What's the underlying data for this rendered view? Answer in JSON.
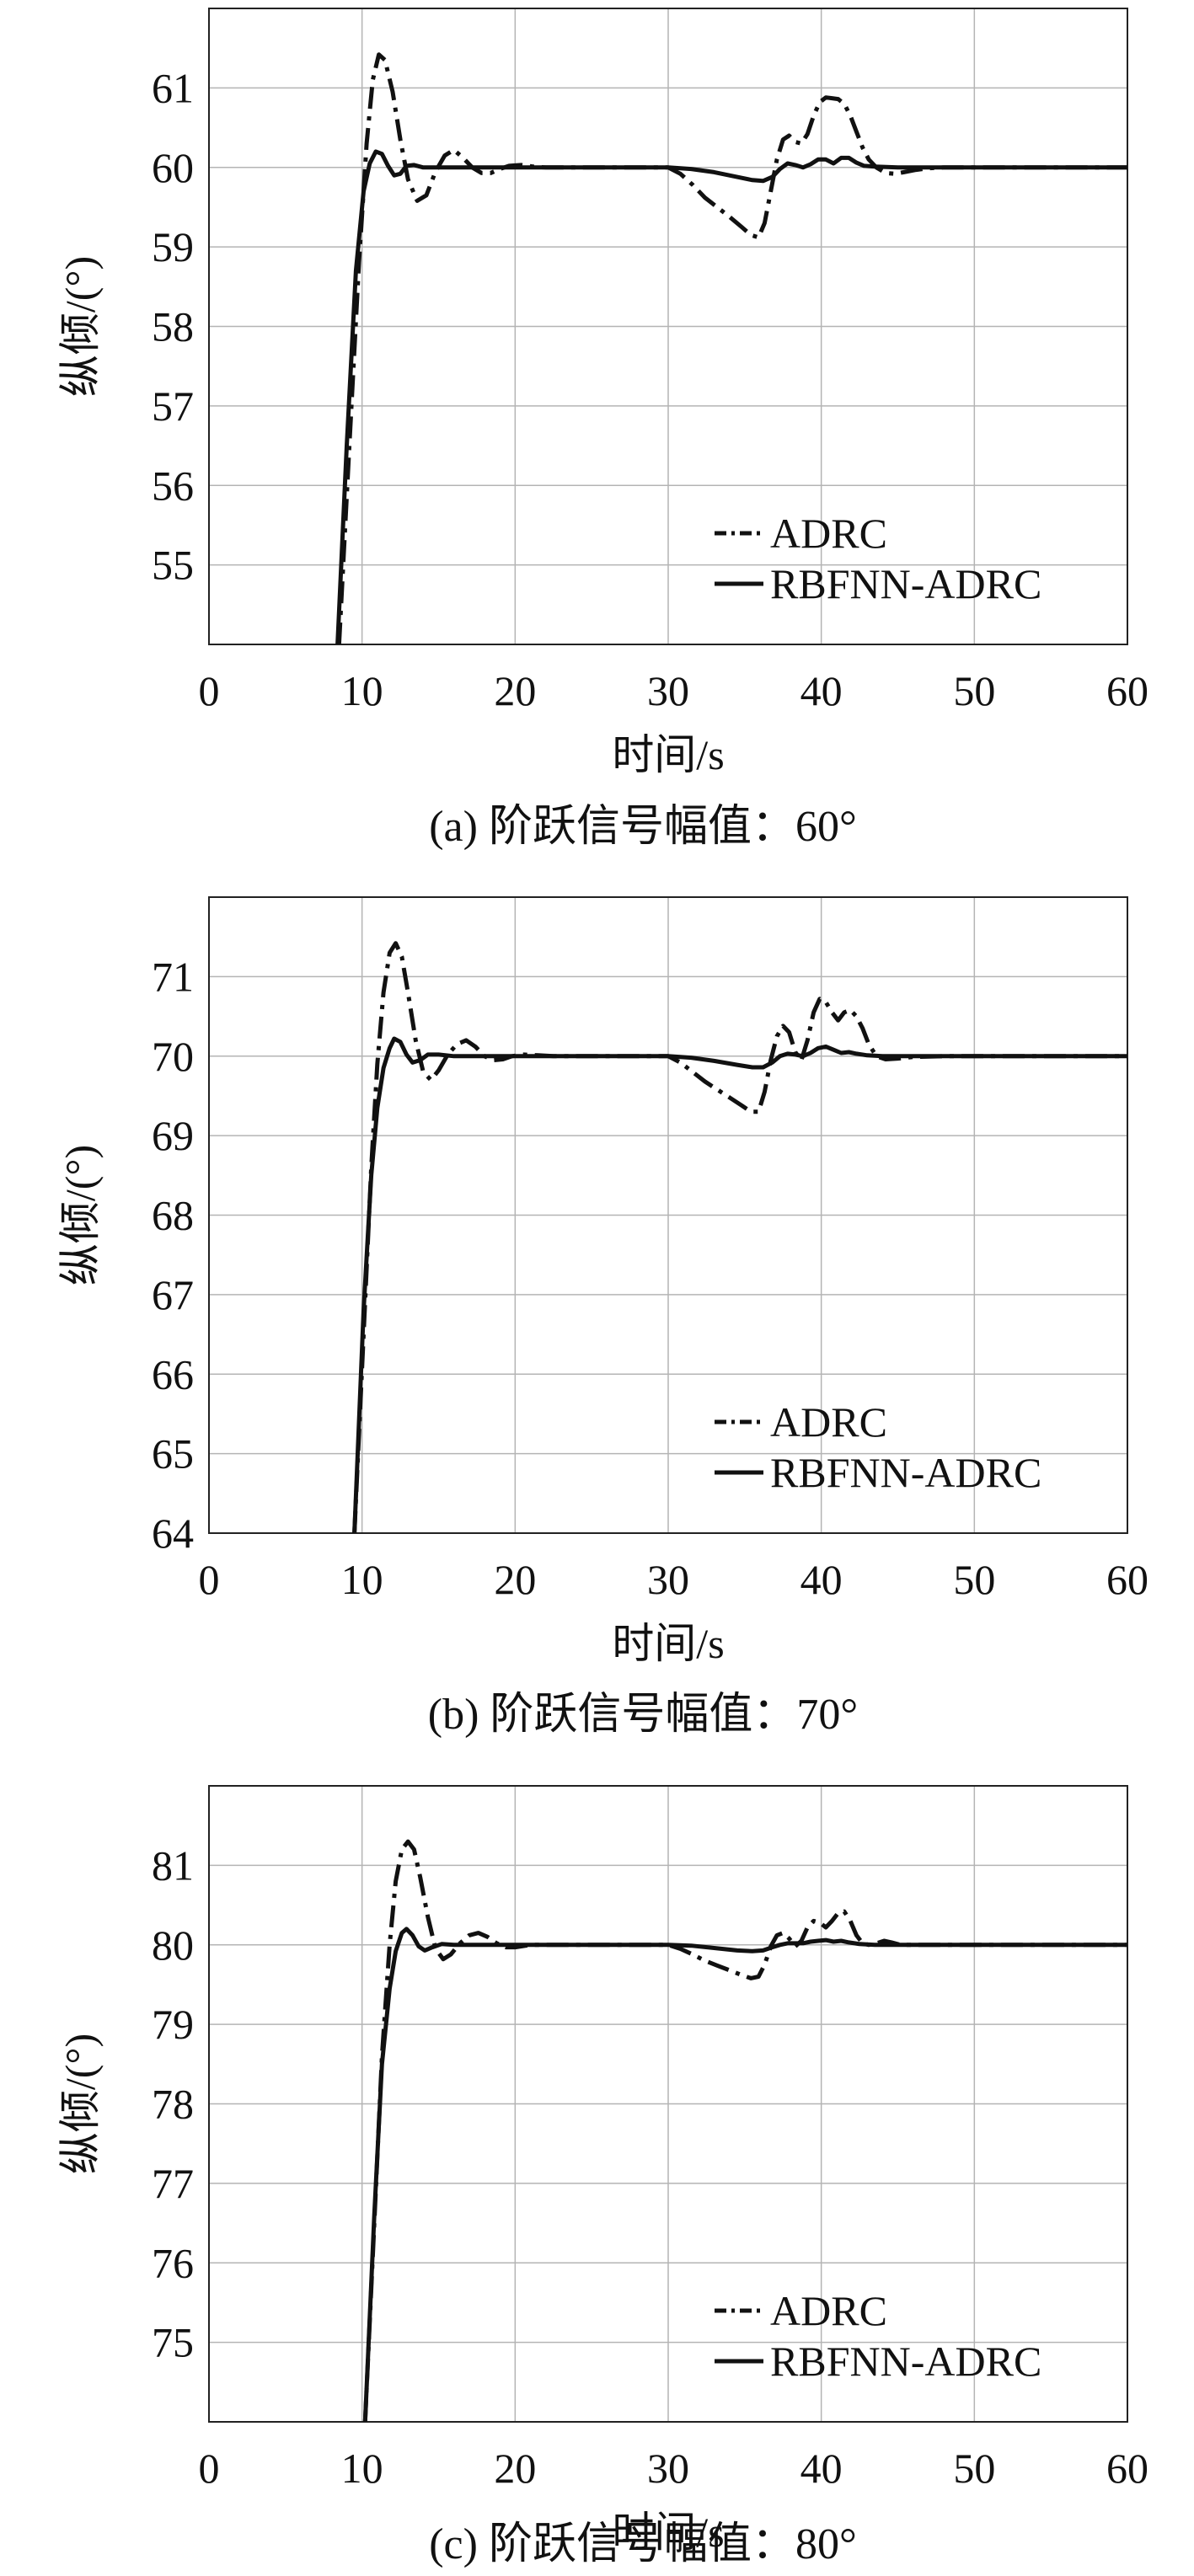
{
  "figure": {
    "background": "#ffffff",
    "line_color": "#111111",
    "grid_color": "#b4b4b4"
  },
  "chart_data": [
    {
      "type": "line",
      "caption": "(a) 阶跃信号幅值：60°",
      "xlabel": "时间/s",
      "ylabel": "纵倾/(°)",
      "xlim": [
        0,
        60
      ],
      "ylim": [
        54,
        62
      ],
      "xticks": [
        0,
        10,
        20,
        30,
        40,
        50,
        60
      ],
      "yticks": [
        55,
        56,
        57,
        58,
        59,
        60,
        61
      ],
      "grid": true,
      "legend_position": "lower-right",
      "series": [
        {
          "name": "ADRC",
          "style": "dashdot",
          "x": [
            8.5,
            9.2,
            9.8,
            10.3,
            10.7,
            11.1,
            11.5,
            12.0,
            12.5,
            13.0,
            13.6,
            14.2,
            14.8,
            15.4,
            16.0,
            16.6,
            17.2,
            17.8,
            18.4,
            19.0,
            19.6,
            20.4,
            21.2,
            22.0,
            25.0,
            30.0,
            30.8,
            31.6,
            32.4,
            33.2,
            34.0,
            34.8,
            35.4,
            35.9,
            36.3,
            36.7,
            37.1,
            37.5,
            37.9,
            38.3,
            38.7,
            39.1,
            39.5,
            39.9,
            40.3,
            40.7,
            41.1,
            41.5,
            41.9,
            42.3,
            42.7,
            43.1,
            43.6,
            44.2,
            44.8,
            45.4,
            46.2,
            47.0,
            48.0,
            50.0,
            60.0
          ],
          "y": [
            54.0,
            56.6,
            58.8,
            60.3,
            61.1,
            61.42,
            61.35,
            60.95,
            60.35,
            59.85,
            59.58,
            59.65,
            59.95,
            60.15,
            60.22,
            60.12,
            60.0,
            59.93,
            59.93,
            59.98,
            60.02,
            60.03,
            60.01,
            60.0,
            60.0,
            60.0,
            59.92,
            59.78,
            59.62,
            59.5,
            59.38,
            59.25,
            59.15,
            59.12,
            59.3,
            59.7,
            60.1,
            60.35,
            60.4,
            60.32,
            60.3,
            60.42,
            60.65,
            60.82,
            60.88,
            60.87,
            60.86,
            60.8,
            60.65,
            60.45,
            60.25,
            60.1,
            60.0,
            59.93,
            59.92,
            59.94,
            59.97,
            59.99,
            60.0,
            60.0,
            60.0
          ]
        },
        {
          "name": "RBFNN-ADRC",
          "style": "solid",
          "x": [
            8.4,
            9.0,
            9.6,
            10.1,
            10.5,
            10.9,
            11.3,
            11.7,
            12.1,
            12.5,
            12.9,
            13.4,
            14.0,
            15.0,
            16.0,
            20.0,
            30.0,
            31.5,
            33.0,
            34.5,
            35.5,
            36.2,
            36.8,
            37.3,
            37.8,
            38.3,
            38.8,
            39.3,
            39.8,
            40.3,
            40.8,
            41.3,
            41.8,
            42.3,
            42.8,
            43.5,
            45.0,
            50.0,
            60.0
          ],
          "y": [
            54.0,
            56.5,
            58.7,
            59.7,
            60.05,
            60.2,
            60.17,
            60.02,
            59.9,
            59.92,
            60.02,
            60.03,
            60.0,
            60.0,
            60.0,
            60.0,
            60.0,
            59.98,
            59.94,
            59.88,
            59.84,
            59.83,
            59.88,
            59.98,
            60.05,
            60.03,
            60.0,
            60.04,
            60.1,
            60.1,
            60.05,
            60.12,
            60.12,
            60.06,
            60.02,
            60.01,
            60.0,
            60.0,
            60.0
          ]
        }
      ]
    },
    {
      "type": "line",
      "caption": "(b) 阶跃信号幅值：70°",
      "xlabel": "时间/s",
      "ylabel": "纵倾/(°)",
      "xlim": [
        0,
        60
      ],
      "ylim": [
        64,
        72
      ],
      "xticks": [
        0,
        10,
        20,
        30,
        40,
        50,
        60
      ],
      "yticks": [
        64,
        65,
        66,
        67,
        68,
        69,
        70,
        71
      ],
      "grid": true,
      "legend_position": "lower-right",
      "series": [
        {
          "name": "ADRC",
          "style": "dashdot",
          "x": [
            9.5,
            10.1,
            10.6,
            11.0,
            11.4,
            11.8,
            12.2,
            12.6,
            13.0,
            13.5,
            14.0,
            14.5,
            15.0,
            15.6,
            16.2,
            16.8,
            17.4,
            18.0,
            18.6,
            19.2,
            19.8,
            20.5,
            21.5,
            22.5,
            25.0,
            30.0,
            30.8,
            31.6,
            32.4,
            33.2,
            34.0,
            34.8,
            35.4,
            35.9,
            36.3,
            36.7,
            37.1,
            37.5,
            37.9,
            38.3,
            38.7,
            39.1,
            39.5,
            39.9,
            40.3,
            40.7,
            41.1,
            41.5,
            41.9,
            42.3,
            42.7,
            43.1,
            43.6,
            44.2,
            45.0,
            46.0,
            48.0,
            50.0,
            60.0
          ],
          "y": [
            64.0,
            66.5,
            68.6,
            69.9,
            70.8,
            71.3,
            71.42,
            71.25,
            70.8,
            70.2,
            69.8,
            69.7,
            69.82,
            70.02,
            70.15,
            70.2,
            70.12,
            70.0,
            69.95,
            69.96,
            70.0,
            70.02,
            70.01,
            70.0,
            70.0,
            70.0,
            69.92,
            69.8,
            69.68,
            69.58,
            69.48,
            69.38,
            69.3,
            69.3,
            69.55,
            69.95,
            70.25,
            70.38,
            70.3,
            70.05,
            69.95,
            70.2,
            70.55,
            70.72,
            70.68,
            70.55,
            70.45,
            70.55,
            70.58,
            70.5,
            70.35,
            70.15,
            70.0,
            69.96,
            69.97,
            69.99,
            70.0,
            70.0,
            70.0
          ]
        },
        {
          "name": "RBFNN-ADRC",
          "style": "solid",
          "x": [
            9.5,
            10.1,
            10.6,
            11.0,
            11.4,
            11.8,
            12.1,
            12.5,
            12.9,
            13.3,
            13.8,
            14.3,
            15.0,
            16.0,
            20.0,
            30.0,
            31.5,
            33.0,
            34.5,
            35.5,
            36.2,
            36.8,
            37.3,
            37.8,
            38.3,
            38.8,
            39.3,
            39.8,
            40.3,
            40.8,
            41.3,
            41.8,
            42.3,
            43.0,
            44.0,
            46.0,
            50.0,
            60.0
          ],
          "y": [
            64.0,
            66.8,
            68.5,
            69.35,
            69.85,
            70.1,
            70.22,
            70.18,
            70.02,
            69.92,
            69.95,
            70.02,
            70.02,
            70.0,
            70.0,
            70.0,
            69.98,
            69.94,
            69.89,
            69.86,
            69.86,
            69.92,
            70.0,
            70.03,
            70.02,
            70.0,
            70.04,
            70.1,
            70.12,
            70.08,
            70.04,
            70.05,
            70.03,
            70.01,
            70.0,
            70.0,
            70.0,
            70.0
          ]
        }
      ]
    },
    {
      "type": "line",
      "caption": "(c) 阶跃信号幅值：80°",
      "xlabel": "时间/s",
      "ylabel": "纵倾/(°)",
      "xlim": [
        0,
        60
      ],
      "ylim": [
        74,
        82
      ],
      "xticks": [
        0,
        10,
        20,
        30,
        40,
        50,
        60
      ],
      "yticks": [
        75,
        76,
        77,
        78,
        79,
        80,
        81
      ],
      "grid": true,
      "legend_position": "lower-right",
      "series": [
        {
          "name": "ADRC",
          "style": "dashdot",
          "x": [
            10.2,
            10.8,
            11.3,
            11.8,
            12.2,
            12.6,
            13.0,
            13.4,
            13.8,
            14.3,
            14.8,
            15.3,
            15.8,
            16.4,
            17.0,
            17.6,
            18.2,
            18.8,
            19.4,
            20.0,
            21.0,
            22.0,
            25.0,
            30.0,
            30.8,
            31.6,
            32.4,
            33.2,
            34.0,
            34.8,
            35.4,
            35.9,
            36.3,
            36.7,
            37.1,
            37.5,
            37.9,
            38.3,
            38.7,
            39.1,
            39.5,
            39.9,
            40.3,
            40.7,
            41.1,
            41.5,
            41.9,
            42.3,
            42.7,
            43.1,
            43.6,
            44.1,
            44.6,
            45.2,
            46.0,
            48.0,
            50.0,
            60.0
          ],
          "y": [
            74.0,
            76.5,
            78.6,
            80.0,
            80.8,
            81.2,
            81.3,
            81.2,
            80.85,
            80.35,
            79.95,
            79.82,
            79.88,
            80.02,
            80.12,
            80.15,
            80.1,
            80.02,
            79.97,
            79.97,
            80.0,
            80.0,
            80.0,
            80.0,
            79.95,
            79.88,
            79.8,
            79.74,
            79.68,
            79.62,
            79.58,
            79.6,
            79.75,
            79.98,
            80.12,
            80.15,
            80.08,
            79.98,
            80.05,
            80.22,
            80.3,
            80.28,
            80.22,
            80.3,
            80.4,
            80.42,
            80.3,
            80.12,
            80.02,
            80.0,
            80.02,
            80.05,
            80.03,
            80.0,
            80.0,
            80.0,
            80.0,
            80.0
          ]
        },
        {
          "name": "RBFNN-ADRC",
          "style": "solid",
          "x": [
            10.2,
            10.8,
            11.3,
            11.8,
            12.2,
            12.6,
            12.9,
            13.3,
            13.7,
            14.1,
            14.6,
            15.2,
            16.0,
            20.0,
            30.0,
            31.5,
            33.0,
            34.5,
            35.5,
            36.2,
            36.8,
            37.3,
            37.8,
            38.3,
            38.8,
            39.3,
            39.8,
            40.3,
            40.8,
            41.3,
            41.8,
            42.5,
            43.5,
            45.0,
            50.0,
            60.0
          ],
          "y": [
            74.0,
            76.6,
            78.5,
            79.45,
            79.92,
            80.15,
            80.2,
            80.12,
            79.98,
            79.93,
            79.97,
            80.01,
            80.0,
            80.0,
            80.0,
            79.99,
            79.96,
            79.93,
            79.92,
            79.93,
            79.97,
            80.0,
            80.02,
            80.02,
            80.02,
            80.04,
            80.05,
            80.06,
            80.04,
            80.05,
            80.03,
            80.01,
            80.0,
            80.0,
            80.0,
            80.0
          ]
        }
      ]
    }
  ]
}
